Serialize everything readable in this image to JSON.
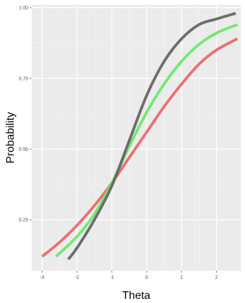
{
  "chart_data": {
    "type": "line",
    "title": "",
    "xlabel": "Theta",
    "ylabel": "Probability",
    "xlim": [
      -3.3,
      2.7
    ],
    "ylim": [
      0.07,
      1.01
    ],
    "grid": true,
    "background": "#ebebeb",
    "x_ticks": [
      -3,
      -2,
      -1,
      0,
      1,
      2
    ],
    "x_tick_labels": [
      "-3",
      "-2",
      "-1",
      "0",
      "1",
      "2"
    ],
    "y_ticks": [
      0.25,
      0.5,
      0.75,
      1.0
    ],
    "y_tick_labels": [
      "0.25",
      "0.50",
      "0.75",
      "1.00"
    ],
    "series": [
      {
        "color": "#e96a6a",
        "x": [
          -3.0,
          -2.5,
          -2.0,
          -1.5,
          -1.0,
          -0.5,
          0.0,
          0.5,
          1.0,
          1.5,
          2.0,
          2.6
        ],
        "y": [
          0.12,
          0.17,
          0.23,
          0.3,
          0.38,
          0.47,
          0.56,
          0.65,
          0.73,
          0.8,
          0.85,
          0.89
        ]
      },
      {
        "color": "#6ee86e",
        "x": [
          -2.6,
          -2.0,
          -1.5,
          -1.0,
          -0.5,
          0.0,
          0.5,
          1.0,
          1.5,
          2.0,
          2.6
        ],
        "y": [
          0.12,
          0.19,
          0.27,
          0.38,
          0.51,
          0.63,
          0.73,
          0.81,
          0.87,
          0.91,
          0.94
        ]
      },
      {
        "color": "#666666",
        "x": [
          -2.25,
          -2.0,
          -1.5,
          -1.0,
          -0.5,
          0.0,
          0.5,
          1.0,
          1.5,
          2.0,
          2.55
        ],
        "y": [
          0.11,
          0.15,
          0.25,
          0.37,
          0.53,
          0.69,
          0.81,
          0.89,
          0.94,
          0.96,
          0.98
        ]
      }
    ]
  }
}
